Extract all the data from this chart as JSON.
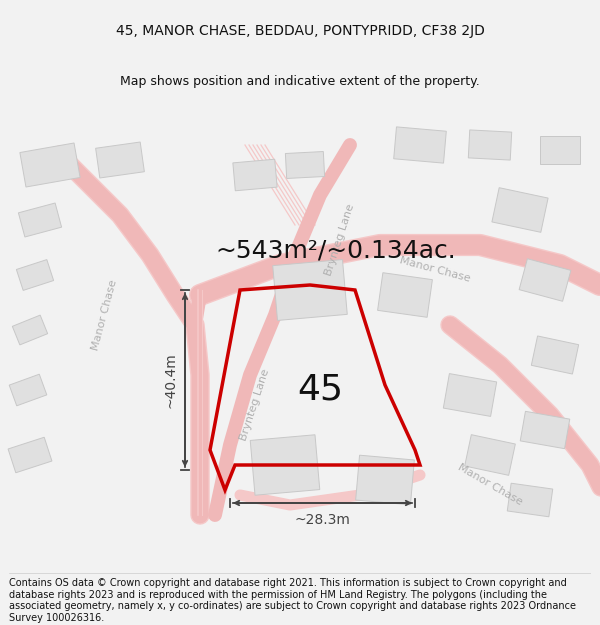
{
  "title": "45, MANOR CHASE, BEDDAU, PONTYPRIDD, CF38 2JD",
  "subtitle": "Map shows position and indicative extent of the property.",
  "area_label": "~543m²/~0.134ac.",
  "width_label": "~28.3m",
  "height_label": "~40.4m",
  "plot_number": "45",
  "footer": "Contains OS data © Crown copyright and database right 2021. This information is subject to Crown copyright and database rights 2023 and is reproduced with the permission of HM Land Registry. The polygons (including the associated geometry, namely x, y co-ordinates) are subject to Crown copyright and database rights 2023 Ordnance Survey 100026316.",
  "bg_color": "#f2f2f2",
  "map_bg": "#ffffff",
  "road_color_light": "#f5c8c8",
  "road_color_mid": "#f0b8b8",
  "building_face": "#e0e0e0",
  "building_edge": "#c8c8c8",
  "property_color": "#cc0000",
  "street_label_color": "#b0b0b0",
  "dim_color": "#444444",
  "text_color": "#111111",
  "title_fontsize": 10,
  "subtitle_fontsize": 9,
  "area_fontsize": 18,
  "plot_num_fontsize": 26,
  "street_fontsize": 8,
  "dim_fontsize": 10,
  "footer_fontsize": 7
}
